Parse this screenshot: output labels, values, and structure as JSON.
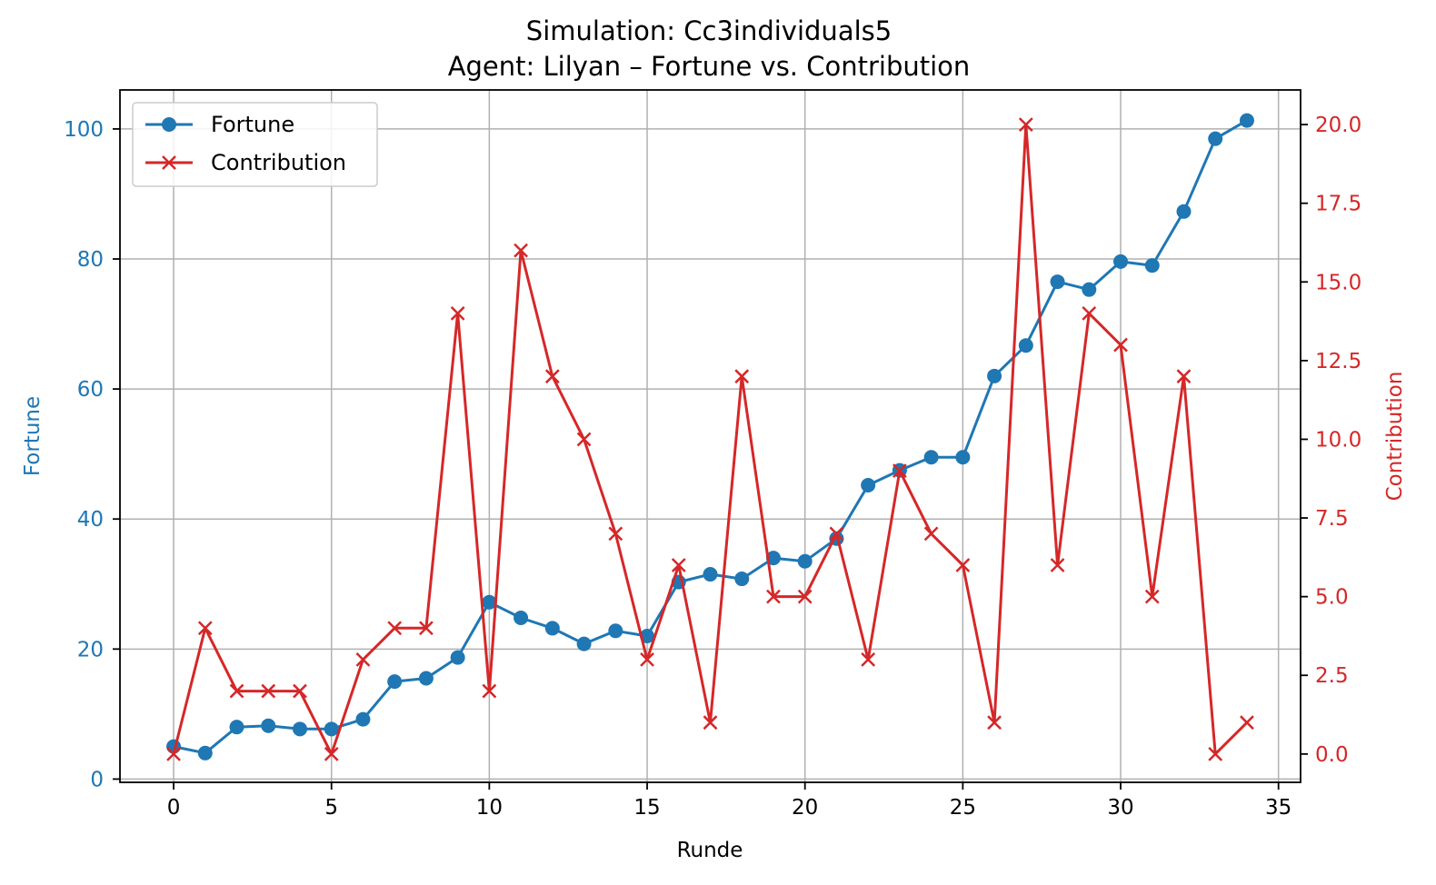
{
  "chart_data": {
    "type": "line",
    "title": "Simulation: Cc3individuals5",
    "subtitle": "Agent: Lilyan – Fortune vs. Contribution",
    "xlabel": "Runde",
    "ylabel_left": "Fortune",
    "ylabel_right": "Contribution",
    "xlim": [
      -1.7,
      35.7
    ],
    "ylim_left": [
      -0.5,
      106
    ],
    "ylim_right": [
      -0.9,
      21.1
    ],
    "x_ticks": [
      "0",
      "5",
      "10",
      "15",
      "20",
      "25",
      "30",
      "35"
    ],
    "y_left_ticks": [
      "0",
      "20",
      "40",
      "60",
      "80",
      "100"
    ],
    "y_right_ticks": [
      "0.0",
      "2.5",
      "5.0",
      "7.5",
      "10.0",
      "12.5",
      "15.0",
      "17.5",
      "20.0"
    ],
    "grid": true,
    "legend_position": "upper-left",
    "x": [
      0,
      1,
      2,
      3,
      4,
      5,
      6,
      7,
      8,
      9,
      10,
      11,
      12,
      13,
      14,
      15,
      16,
      17,
      18,
      19,
      20,
      21,
      22,
      23,
      24,
      25,
      26,
      27,
      28,
      29,
      30,
      31,
      32,
      33,
      34
    ],
    "series": [
      {
        "name": "Fortune",
        "axis": "left",
        "color": "#1f77b4",
        "marker": "circle",
        "values": [
          5.0,
          4.0,
          8.0,
          8.2,
          7.7,
          7.7,
          9.2,
          15.0,
          15.5,
          18.7,
          27.2,
          24.8,
          23.2,
          20.8,
          22.8,
          22.0,
          30.3,
          31.5,
          30.8,
          34.0,
          33.5,
          37.0,
          45.2,
          47.5,
          49.5,
          49.5,
          62.0,
          66.7,
          76.5,
          75.3,
          79.6,
          79.0,
          87.3,
          98.5,
          101.3
        ]
      },
      {
        "name": "Contribution",
        "axis": "right",
        "color": "#d62728",
        "marker": "x",
        "values": [
          0,
          4,
          2,
          2,
          2,
          0,
          3,
          4,
          4,
          14,
          2,
          16,
          12,
          10,
          7,
          3,
          6,
          1,
          12,
          5,
          5,
          7,
          3,
          9,
          7,
          6,
          1,
          20,
          6,
          14,
          13,
          5,
          12,
          0,
          1
        ]
      }
    ]
  }
}
